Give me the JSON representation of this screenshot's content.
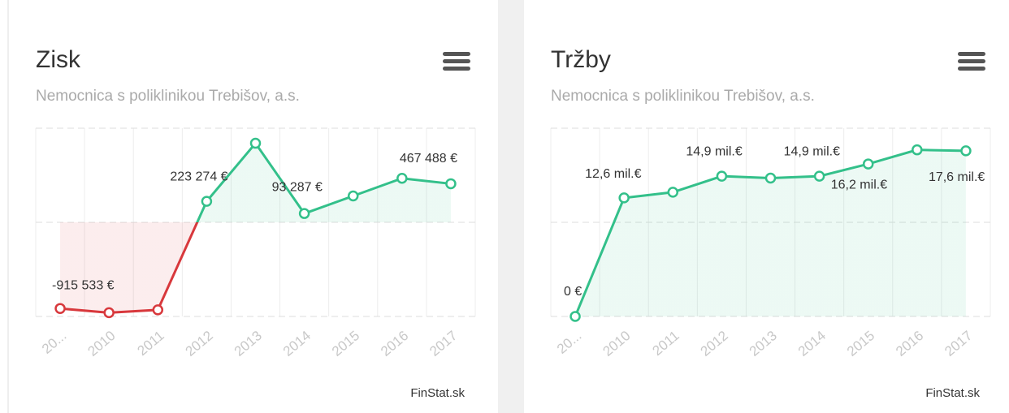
{
  "chart_data": [
    {
      "type": "line",
      "title": "Zisk",
      "subtitle": "Nemocnica s poliklinikou Trebišov, a.s.",
      "credit": "FinStat.sk",
      "categories": [
        "20...",
        "2010",
        "2011",
        "2012",
        "2013",
        "2014",
        "2015",
        "2016",
        "2017"
      ],
      "series": [
        {
          "name": "Zisk",
          "color": "#33c08a",
          "negative_color": "#d8383c",
          "values": [
            -915533,
            -960000,
            -930000,
            223274,
            840000,
            93287,
            280000,
            467488,
            410000
          ],
          "value_labels": [
            "-915 533 €",
            null,
            null,
            "223 274 €",
            null,
            "93 287 €",
            null,
            "467 488 €",
            null
          ]
        }
      ],
      "ylim": [
        -1000000,
        1000000
      ],
      "yticks": [
        -1000000,
        0,
        1000000
      ],
      "grid": true
    },
    {
      "type": "line",
      "title": "Tržby",
      "subtitle": "Nemocnica s poliklinikou Trebišov, a.s.",
      "credit": "FinStat.sk",
      "categories": [
        "20...",
        "2010",
        "2011",
        "2012",
        "2013",
        "2014",
        "2015",
        "2016",
        "2017"
      ],
      "series": [
        {
          "name": "Tržby",
          "color": "#33c08a",
          "negative_color": "#d8383c",
          "values": [
            0,
            12600000,
            13200000,
            14900000,
            14700000,
            14900000,
            16200000,
            17700000,
            17600000
          ],
          "value_labels": [
            "0 €",
            "12,6 mil.€",
            null,
            "14,9 mil.€",
            null,
            "14,9 mil.€",
            "16,2 mil.€",
            null,
            "17,6 mil.€"
          ]
        }
      ],
      "ylim": [
        0,
        20000000
      ],
      "yticks": [
        0,
        10000000,
        20000000
      ],
      "grid": true
    }
  ]
}
